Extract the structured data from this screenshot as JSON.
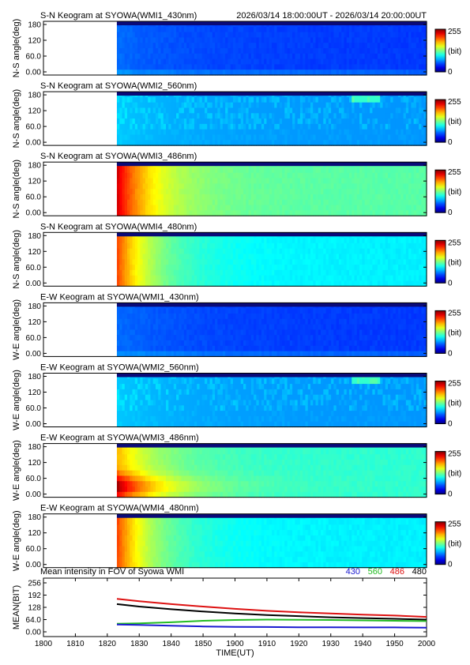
{
  "chart_data": {
    "type": "heatmap",
    "header_time_range": "2026/03/14 18:00:00UT - 2026/03/14 20:00:00UT",
    "x_axis": {
      "label": "TIME(UT)",
      "range": [
        1800,
        2000
      ],
      "ticks": [
        "1800",
        "1810",
        "1820",
        "1830",
        "1840",
        "1850",
        "1900",
        "1910",
        "1920",
        "1930",
        "1940",
        "1950",
        "2000"
      ],
      "data_start": 1823
    },
    "colorbar": {
      "max_label": "255",
      "unit_label": "(bit)",
      "min_label": "0"
    },
    "keograms": [
      {
        "title": "S-N Keogram at SYOWA(WMI1_430nm)",
        "ylabel": "N-S angle(deg)",
        "yticks": [
          "180",
          "120",
          "60.0",
          "0.00"
        ],
        "channel": "430",
        "scene": "dim"
      },
      {
        "title": "S-N Keogram at SYOWA(WMI2_560nm)",
        "ylabel": "N-S angle(deg)",
        "yticks": [
          "180",
          "120",
          "60.0",
          "0.00"
        ],
        "channel": "560",
        "scene": "stripes"
      },
      {
        "title": "S-N Keogram at SYOWA(WMI3_486nm)",
        "ylabel": "N-S angle(deg)",
        "yticks": [
          "180",
          "120",
          "60.0",
          "0.00"
        ],
        "channel": "486",
        "scene": "bright"
      },
      {
        "title": "S-N Keogram at SYOWA(WMI4_480nm)",
        "ylabel": "N-S angle(deg)",
        "yticks": [
          "180",
          "120",
          "60.0",
          "0.00"
        ],
        "channel": "480",
        "scene": "medium"
      },
      {
        "title": "E-W Keogram at SYOWA(WMI1_430nm)",
        "ylabel": "W-E angle(deg)",
        "yticks": [
          "180",
          "120",
          "60.0",
          "0.00"
        ],
        "channel": "430",
        "scene": "dim"
      },
      {
        "title": "E-W Keogram at SYOWA(WMI2_560nm)",
        "ylabel": "W-E angle(deg)",
        "yticks": [
          "180",
          "120",
          "60.0",
          "0.00"
        ],
        "channel": "560",
        "scene": "stripes"
      },
      {
        "title": "E-W Keogram at SYOWA(WMI3_486nm)",
        "ylabel": "W-E angle(deg)",
        "yticks": [
          "180",
          "120",
          "60.0",
          "0.00"
        ],
        "channel": "486",
        "scene": "bright_low"
      },
      {
        "title": "E-W Keogram at SYOWA(WMI4_480nm)",
        "ylabel": "W-E angle(deg)",
        "yticks": [
          "180",
          "120",
          "60.0",
          "0.00"
        ],
        "channel": "480",
        "scene": "medium"
      }
    ],
    "mean_plot": {
      "type": "line",
      "title": "Mean intensity in FOV of Syowa WMI",
      "ylabel": "MEAN(BIT)",
      "yticks": [
        "256",
        "192",
        "128",
        "64.0",
        "0.00"
      ],
      "ylim": [
        0,
        256
      ],
      "legend": [
        {
          "name": "430",
          "color": "#1a1ad0"
        },
        {
          "name": "560",
          "color": "#22bb22"
        },
        {
          "name": "486",
          "color": "#dd1111"
        },
        {
          "name": "480",
          "color": "#000000"
        }
      ],
      "x": [
        1823,
        1830,
        1840,
        1850,
        1900,
        1910,
        1920,
        1930,
        1940,
        1950,
        2000
      ],
      "series": [
        {
          "name": "486",
          "color": "#dd1111",
          "values": [
            172,
            160,
            145,
            132,
            120,
            110,
            102,
            96,
            90,
            85,
            78
          ]
        },
        {
          "name": "480",
          "color": "#000000",
          "values": [
            145,
            132,
            118,
            106,
            96,
            88,
            82,
            76,
            72,
            68,
            64
          ]
        },
        {
          "name": "560",
          "color": "#22bb22",
          "values": [
            42,
            44,
            50,
            58,
            62,
            64,
            63,
            62,
            60,
            58,
            56
          ]
        },
        {
          "name": "430",
          "color": "#1a1ad0",
          "values": [
            38,
            36,
            32,
            28,
            26,
            25,
            24,
            24,
            23,
            23,
            22
          ]
        }
      ]
    }
  }
}
